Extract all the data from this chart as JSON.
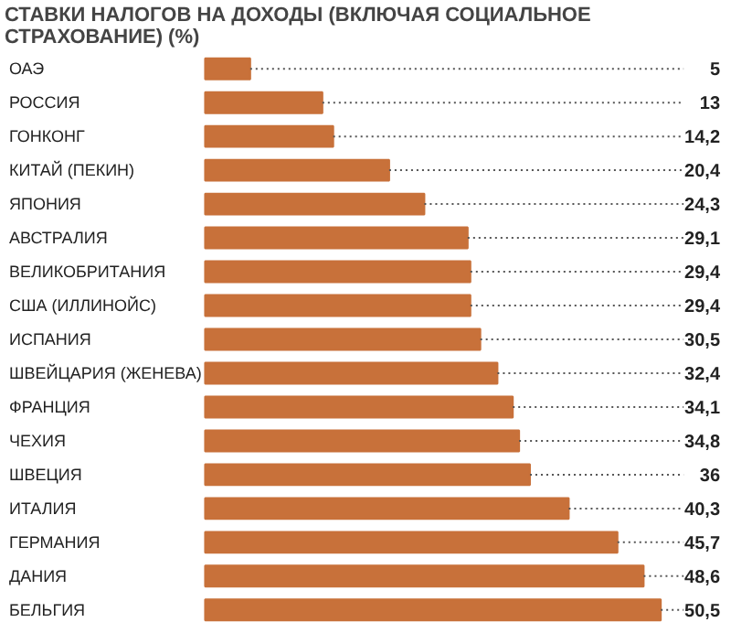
{
  "chart_data": {
    "type": "bar",
    "orientation": "horizontal",
    "title": "СТАВКИ НАЛОГОВ НА ДОХОДЫ (ВКЛЮЧАЯ СОЦИАЛЬНОЕ СТРАХОВАНИЕ) (%)",
    "categories": [
      "ОАЭ",
      "РОССИЯ",
      "ГОНКОНГ",
      "КИТАЙ (ПЕКИН)",
      "ЯПОНИЯ",
      "АВСТРАЛИЯ",
      "ВЕЛИКОБРИТАНИЯ",
      "США (ИЛЛИНОЙС)",
      "ИСПАНИЯ",
      "ШВЕЙЦАРИЯ (ЖЕНЕВА)",
      "ФРАНЦИЯ",
      "ЧЕХИЯ",
      "ШВЕЦИЯ",
      "ИТАЛИЯ",
      "ГЕРМАНИЯ",
      "ДАНИЯ",
      "БЕЛЬГИЯ"
    ],
    "values": [
      5,
      13,
      14.2,
      20.4,
      24.3,
      29.1,
      29.4,
      29.4,
      30.5,
      32.4,
      34.1,
      34.8,
      36,
      40.3,
      45.7,
      48.6,
      50.5
    ],
    "value_labels": [
      "5",
      "13",
      "14,2",
      "20,4",
      "24,3",
      "29,1",
      "29,4",
      "29,4",
      "30,5",
      "32,4",
      "34,1",
      "34,8",
      "36",
      "40,3",
      "45,7",
      "48,6",
      "50,5"
    ],
    "color": "#c8713a"
  }
}
